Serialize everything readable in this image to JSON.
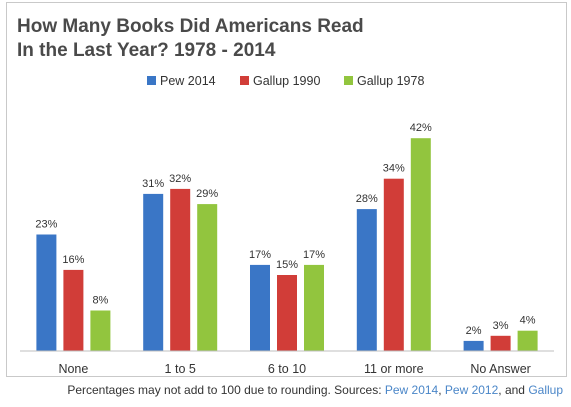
{
  "chart_data": {
    "type": "bar",
    "title": [
      "How Many Books Did Americans Read",
      "In the Last Year? 1978 - 2014"
    ],
    "categories": [
      "None",
      "1 to 5",
      "6 to 10",
      "11 or more",
      "No Answer"
    ],
    "series": [
      {
        "name": "Pew 2014",
        "color": "#3a76c6",
        "values": [
          23,
          31,
          17,
          28,
          2
        ]
      },
      {
        "name": "Gallup 1990",
        "color": "#d13d38",
        "values": [
          16,
          32,
          15,
          34,
          3
        ]
      },
      {
        "name": "Gallup 1978",
        "color": "#92c53e",
        "values": [
          8,
          29,
          17,
          42,
          4
        ]
      }
    ],
    "value_suffix": "%",
    "ylim": [
      0,
      45
    ],
    "legend_position": "top",
    "grid": false
  },
  "footer": {
    "note": "Percentages may not add to 100 due to rounding. Sources: ",
    "sources": [
      "Pew 2014",
      "Pew 2012",
      "Gallup"
    ],
    "sep_comma": ", ",
    "sep_and": ", and "
  },
  "colors": {
    "link": "#4a86c8",
    "axis": "#bfbfbf",
    "title": "#4a4a4a"
  }
}
